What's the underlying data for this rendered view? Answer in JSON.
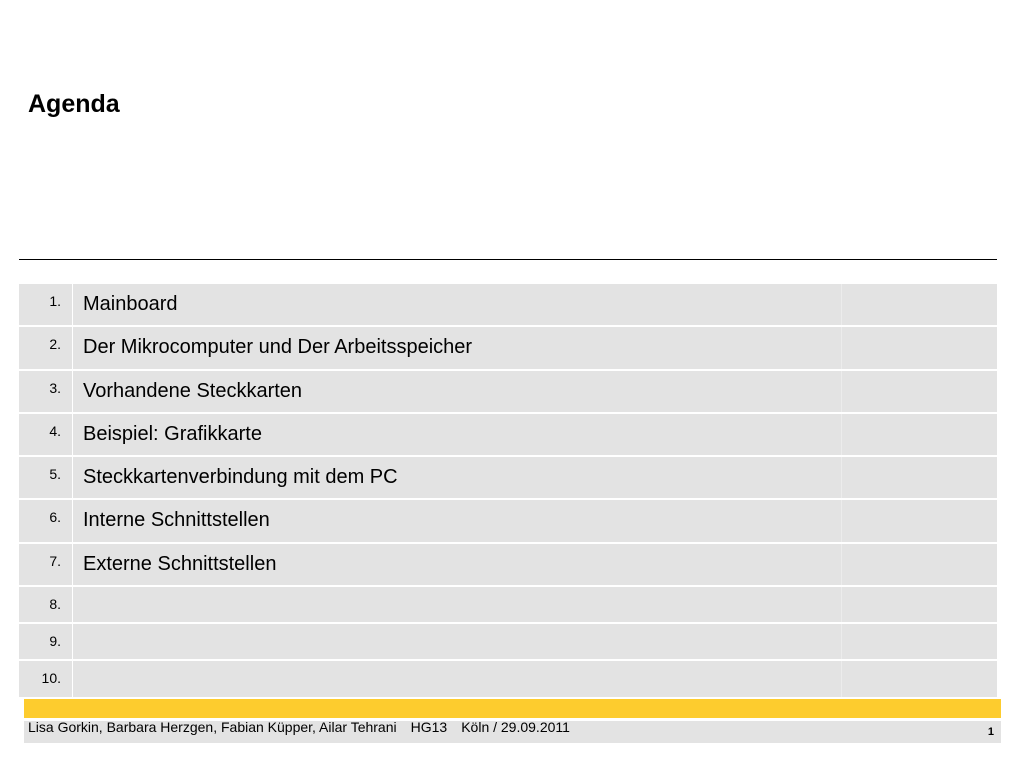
{
  "slide": {
    "title": "Agenda"
  },
  "agenda": {
    "items": [
      {
        "number": "1.",
        "label": "Mainboard"
      },
      {
        "number": "2.",
        "label": "Der Mikrocomputer und Der Arbeitsspeicher"
      },
      {
        "number": "3.",
        "label": "Vorhandene Steckkarten"
      },
      {
        "number": "4.",
        "label": "Beispiel: Grafikkarte"
      },
      {
        "number": "5.",
        "label": "Steckkartenverbindung mit dem PC"
      },
      {
        "number": "6.",
        "label": "Interne Schnittstellen"
      },
      {
        "number": "7.",
        "label": "Externe Schnittstellen"
      },
      {
        "number": "8.",
        "label": ""
      },
      {
        "number": "9.",
        "label": ""
      },
      {
        "number": "10.",
        "label": ""
      }
    ]
  },
  "footer": {
    "authors": "Lisa Gorkin, Barbara Herzgen, Fabian Küpper, Ailar Tehrani",
    "course": "HG13",
    "place_date": "Köln / 29.09.2011",
    "page_number": "1"
  },
  "colors": {
    "accent_bar": "#fdcc2e",
    "row_background": "#e3e3e3"
  }
}
